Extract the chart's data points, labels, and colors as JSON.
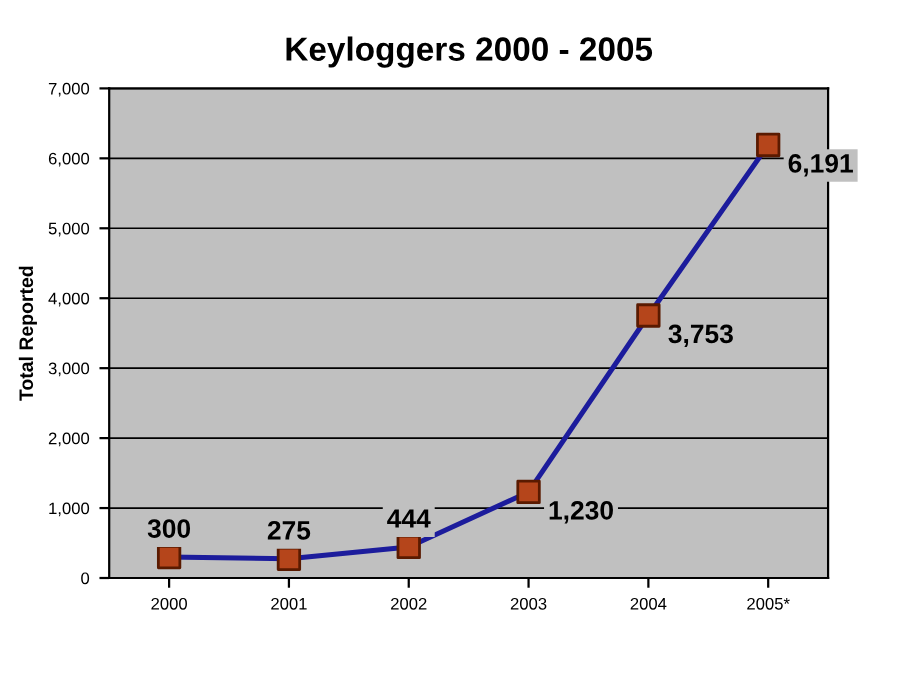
{
  "chart_data": {
    "type": "line",
    "title": "Keyloggers 2000 - 2005",
    "ylabel": "Total Reported",
    "categories": [
      "2000",
      "2001",
      "2002",
      "2003",
      "2004",
      "2005*"
    ],
    "series": [
      {
        "color": "#1c1c9c",
        "colors": [
          "#b5451b",
          "#b5451b",
          "#b5451b",
          "#b5451b",
          "#b5451b",
          "#b5451b"
        ],
        "values": [
          300,
          275,
          444,
          1230,
          3753,
          6191
        ],
        "value_labels": [
          "300",
          "275",
          "444",
          "1,230",
          "3,753",
          "6,191"
        ]
      }
    ],
    "ylim": [
      0,
      7000
    ],
    "yticks": [
      0,
      {
        "value": 1000,
        "label": "1,000"
      },
      {
        "value": 2000,
        "label": "2,000"
      },
      {
        "value": 3000,
        "label": "3,000"
      },
      {
        "value": 4000,
        "label": "4,000"
      },
      {
        "value": 5000,
        "label": "5,000"
      },
      {
        "value": 6000,
        "label": "6,000"
      },
      {
        "value": 7000,
        "label": "7,000"
      }
    ],
    "grid": "y",
    "marker": "square",
    "line_style": "solid"
  }
}
